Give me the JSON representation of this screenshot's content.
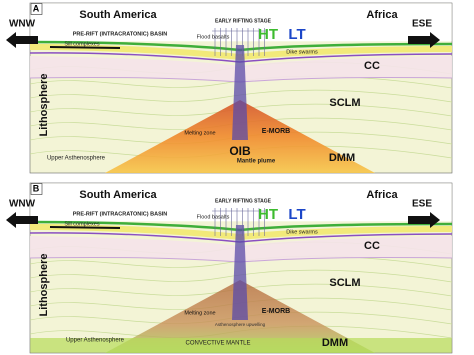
{
  "panels": [
    {
      "label": "A",
      "left_continent": "South America",
      "right_continent": "Africa",
      "left_direction": "WNW",
      "right_direction": "ESE",
      "stage": "EARLY RIFTING STAGE",
      "basin": "PRE-RIFT (INTRACRATONIC) BASIN",
      "flood_basalts": "Flood basalts",
      "ht": "HT",
      "lt": "LT",
      "sills": "Sill complexes",
      "dikes": "Dike swarms",
      "cc": "CC",
      "lithosphere": "Lithosphere",
      "sclm": "SCLM",
      "melting_zone": "Melting zone",
      "emorb": "E-MORB",
      "oib": "OIB",
      "mantle_plume": "Mantle plume",
      "dmm": "DMM",
      "upper_asthenosphere": "Upper Asthenosphere"
    },
    {
      "label": "B",
      "left_continent": "South America",
      "right_continent": "Africa",
      "left_direction": "WNW",
      "right_direction": "ESE",
      "stage": "EARLY RIFTING STAGE",
      "basin": "PRE-RIFT (INTRACRATONIC) BASIN",
      "flood_basalts": "Flood basalts",
      "ht": "HT",
      "lt": "LT",
      "sills": "Sill complexes",
      "dikes": "Dike swarms",
      "cc": "CC",
      "lithosphere": "Lithosphere",
      "sclm": "SCLM",
      "melting_zone": "Melting zone",
      "emorb": "E-MORB",
      "asthenosphere_upwelling": "Asthenosphere upwelling",
      "upper_asthenosphere": "Upper Asthenosphere",
      "convective_mantle": "CONVECTIVE MANTLE",
      "dmm": "DMM"
    }
  ]
}
